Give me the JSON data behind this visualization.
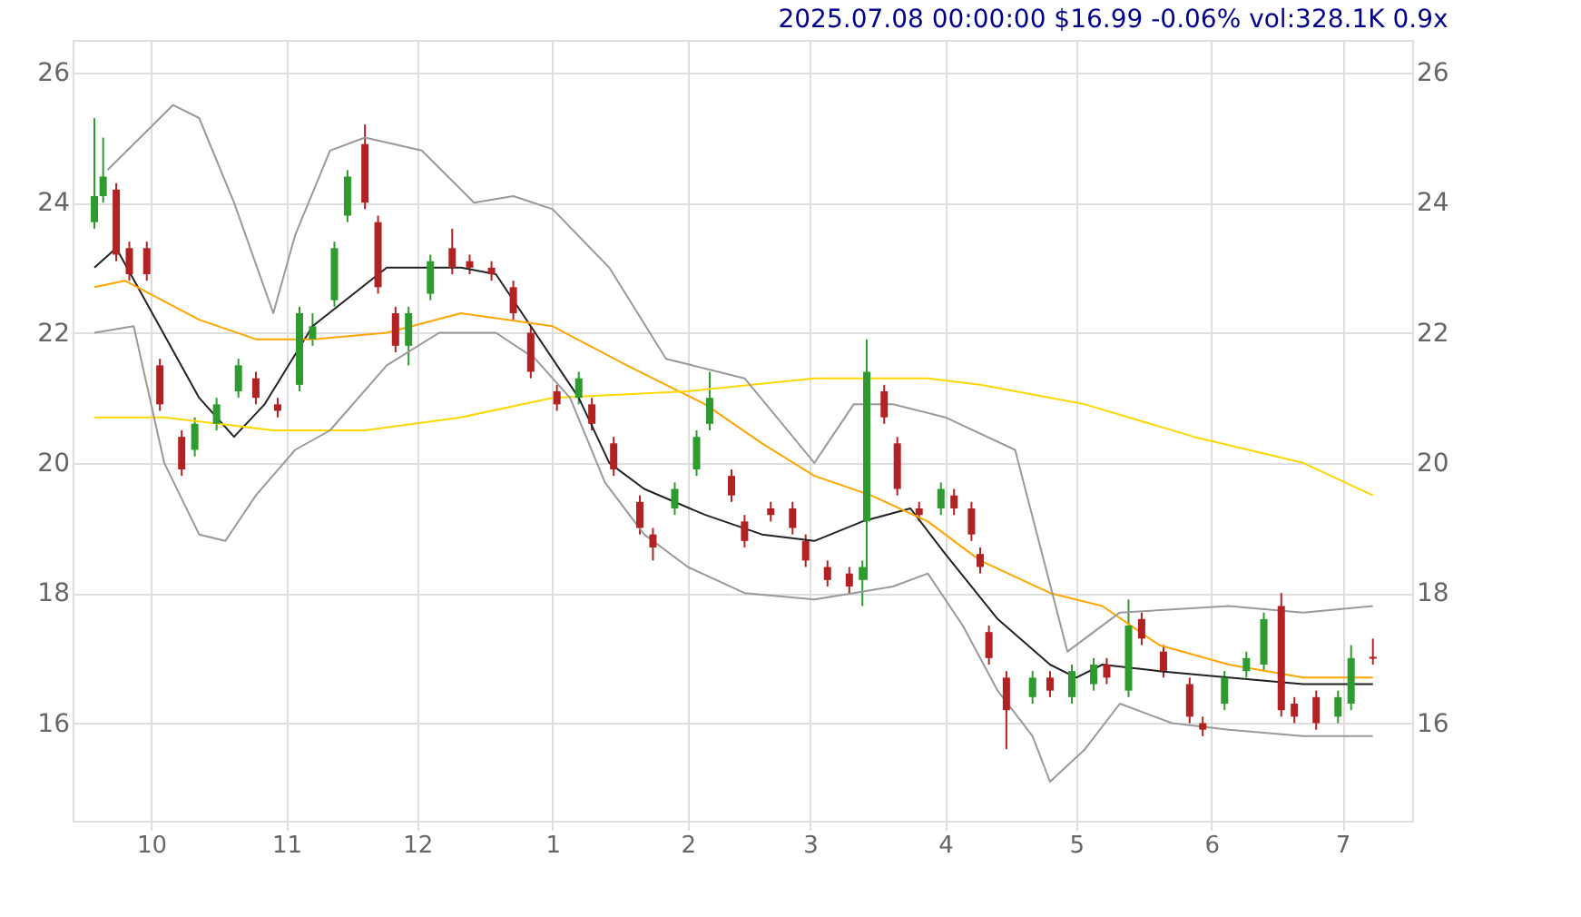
{
  "chart_data": {
    "type": "candlestick",
    "title": "2025.07.08 00:00:00 $16.99 -0.06% vol:328.1K 0.9x",
    "x": [
      "2024-09-18",
      "2024-09-20",
      "2024-09-23",
      "2024-09-26",
      "2024-09-30",
      "2024-10-03",
      "2024-10-08",
      "2024-10-11",
      "2024-10-16",
      "2024-10-21",
      "2024-10-25",
      "2024-10-30",
      "2024-11-04",
      "2024-11-07",
      "2024-11-12",
      "2024-11-15",
      "2024-11-19",
      "2024-11-22",
      "2024-11-26",
      "2024-11-29",
      "2024-12-04",
      "2024-12-09",
      "2024-12-13",
      "2024-12-18",
      "2024-12-23",
      "2024-12-27",
      "2025-01-02",
      "2025-01-07",
      "2025-01-10",
      "2025-01-15",
      "2025-01-21",
      "2025-01-24",
      "2025-01-29",
      "2025-02-03",
      "2025-02-06",
      "2025-02-11",
      "2025-02-14",
      "2025-02-20",
      "2025-02-25",
      "2025-02-28",
      "2025-03-05",
      "2025-03-10",
      "2025-03-13",
      "2025-03-14",
      "2025-03-18",
      "2025-03-21",
      "2025-03-26",
      "2025-03-31",
      "2025-04-03",
      "2025-04-07",
      "2025-04-09",
      "2025-04-11",
      "2025-04-15",
      "2025-04-21",
      "2025-04-25",
      "2025-04-30",
      "2025-05-05",
      "2025-05-08",
      "2025-05-13",
      "2025-05-16",
      "2025-05-21",
      "2025-05-27",
      "2025-05-30",
      "2025-06-04",
      "2025-06-09",
      "2025-06-13",
      "2025-06-17",
      "2025-06-20",
      "2025-06-25",
      "2025-06-30",
      "2025-07-03",
      "2025-07-08"
    ],
    "ohlc": [
      [
        23.7,
        25.3,
        23.6,
        24.1
      ],
      [
        24.1,
        25.0,
        24.0,
        24.4
      ],
      [
        24.2,
        24.3,
        23.1,
        23.2
      ],
      [
        23.3,
        23.4,
        22.8,
        22.9
      ],
      [
        23.3,
        23.4,
        22.8,
        22.9
      ],
      [
        21.5,
        21.6,
        20.8,
        20.9
      ],
      [
        20.4,
        20.5,
        19.8,
        19.9
      ],
      [
        20.2,
        20.7,
        20.1,
        20.6
      ],
      [
        20.6,
        21.0,
        20.5,
        20.9
      ],
      [
        21.1,
        21.6,
        21.0,
        21.5
      ],
      [
        21.3,
        21.4,
        20.9,
        21.0
      ],
      [
        20.9,
        21.0,
        20.7,
        20.8
      ],
      [
        21.2,
        22.4,
        21.1,
        22.3
      ],
      [
        21.9,
        22.3,
        21.8,
        22.1
      ],
      [
        22.5,
        23.4,
        22.4,
        23.3
      ],
      [
        23.8,
        24.5,
        23.7,
        24.4
      ],
      [
        24.9,
        25.2,
        23.9,
        24.0
      ],
      [
        23.7,
        23.8,
        22.6,
        22.7
      ],
      [
        22.3,
        22.4,
        21.7,
        21.8
      ],
      [
        21.8,
        22.4,
        21.5,
        22.3
      ],
      [
        22.6,
        23.2,
        22.5,
        23.1
      ],
      [
        23.3,
        23.6,
        22.9,
        23.0
      ],
      [
        23.1,
        23.2,
        22.9,
        23.0
      ],
      [
        23.0,
        23.1,
        22.8,
        22.9
      ],
      [
        22.7,
        22.8,
        22.2,
        22.3
      ],
      [
        22.0,
        22.1,
        21.3,
        21.4
      ],
      [
        21.1,
        21.2,
        20.8,
        20.9
      ],
      [
        21.0,
        21.4,
        20.9,
        21.3
      ],
      [
        20.9,
        21.0,
        20.5,
        20.6
      ],
      [
        20.3,
        20.4,
        19.8,
        19.9
      ],
      [
        19.4,
        19.5,
        18.9,
        19.0
      ],
      [
        18.9,
        19.0,
        18.5,
        18.7
      ],
      [
        19.3,
        19.7,
        19.2,
        19.6
      ],
      [
        19.9,
        20.5,
        19.8,
        20.4
      ],
      [
        20.6,
        21.4,
        20.5,
        21.0
      ],
      [
        19.8,
        19.9,
        19.4,
        19.5
      ],
      [
        19.1,
        19.2,
        18.7,
        18.8
      ],
      [
        19.3,
        19.4,
        19.1,
        19.2
      ],
      [
        19.3,
        19.4,
        18.9,
        19.0
      ],
      [
        18.8,
        18.9,
        18.4,
        18.5
      ],
      [
        18.4,
        18.5,
        18.1,
        18.2
      ],
      [
        18.3,
        18.4,
        18.0,
        18.1
      ],
      [
        18.2,
        18.5,
        17.8,
        18.4
      ],
      [
        19.1,
        21.9,
        18.2,
        21.4
      ],
      [
        21.1,
        21.2,
        20.6,
        20.7
      ],
      [
        20.3,
        20.4,
        19.5,
        19.6
      ],
      [
        19.3,
        19.4,
        19.1,
        19.2
      ],
      [
        19.3,
        19.7,
        19.2,
        19.6
      ],
      [
        19.5,
        19.6,
        19.2,
        19.3
      ],
      [
        19.3,
        19.4,
        18.8,
        18.9
      ],
      [
        18.6,
        18.7,
        18.3,
        18.4
      ],
      [
        17.4,
        17.5,
        16.9,
        17.0
      ],
      [
        16.7,
        16.8,
        15.6,
        16.2
      ],
      [
        16.4,
        16.8,
        16.3,
        16.7
      ],
      [
        16.7,
        16.8,
        16.4,
        16.5
      ],
      [
        16.4,
        16.9,
        16.3,
        16.8
      ],
      [
        16.6,
        17.0,
        16.5,
        16.9
      ],
      [
        16.9,
        17.0,
        16.6,
        16.7
      ],
      [
        16.5,
        17.9,
        16.4,
        17.5
      ],
      [
        17.6,
        17.7,
        17.2,
        17.3
      ],
      [
        17.1,
        17.2,
        16.7,
        16.8
      ],
      [
        16.6,
        16.7,
        16.0,
        16.1
      ],
      [
        16.0,
        16.1,
        15.8,
        15.9
      ],
      [
        16.3,
        16.8,
        16.2,
        16.7
      ],
      [
        16.8,
        17.1,
        16.7,
        17.0
      ],
      [
        16.9,
        17.7,
        16.8,
        17.6
      ],
      [
        17.8,
        18.0,
        16.1,
        16.2
      ],
      [
        16.3,
        16.4,
        16.0,
        16.1
      ],
      [
        16.4,
        16.5,
        15.9,
        16.0
      ],
      [
        16.1,
        16.5,
        16.0,
        16.4
      ],
      [
        16.3,
        17.2,
        16.2,
        17.0
      ],
      [
        17.02,
        17.3,
        16.9,
        16.99
      ]
    ],
    "colors": [
      "#2e9b2e",
      "#2e9b2e",
      "#b22222",
      "#b22222",
      "#b22222",
      "#b22222",
      "#b22222",
      "#2e9b2e",
      "#2e9b2e",
      "#2e9b2e",
      "#b22222",
      "#b22222",
      "#2e9b2e",
      "#2e9b2e",
      "#2e9b2e",
      "#2e9b2e",
      "#b22222",
      "#b22222",
      "#b22222",
      "#2e9b2e",
      "#2e9b2e",
      "#b22222",
      "#b22222",
      "#b22222",
      "#b22222",
      "#b22222",
      "#b22222",
      "#2e9b2e",
      "#b22222",
      "#b22222",
      "#b22222",
      "#b22222",
      "#2e9b2e",
      "#2e9b2e",
      "#2e9b2e",
      "#b22222",
      "#b22222",
      "#b22222",
      "#b22222",
      "#b22222",
      "#b22222",
      "#b22222",
      "#2e9b2e",
      "#2e9b2e",
      "#b22222",
      "#b22222",
      "#b22222",
      "#2e9b2e",
      "#b22222",
      "#b22222",
      "#b22222",
      "#b22222",
      "#b22222",
      "#2e9b2e",
      "#b22222",
      "#2e9b2e",
      "#2e9b2e",
      "#b22222",
      "#2e9b2e",
      "#b22222",
      "#b22222",
      "#b22222",
      "#b22222",
      "#2e9b2e",
      "#2e9b2e",
      "#2e9b2e",
      "#b22222",
      "#b22222",
      "#b22222",
      "#2e9b2e",
      "#2e9b2e",
      "#b22222"
    ],
    "series": [
      {
        "type": "line",
        "color": "#222222",
        "x": [
          "2024-09-18",
          "2024-09-23",
          "2024-10-12",
          "2024-10-20",
          "2024-10-27",
          "2024-11-07",
          "2024-11-24",
          "2024-12-11",
          "2024-12-19",
          "2024-12-28",
          "2025-01-07",
          "2025-01-14",
          "2025-01-22",
          "2025-02-05",
          "2025-02-18",
          "2025-03-02",
          "2025-03-13",
          "2025-03-24",
          "2025-04-01",
          "2025-04-13",
          "2025-04-25",
          "2025-05-01",
          "2025-05-07",
          "2025-05-20",
          "2025-06-05",
          "2025-06-22",
          "2025-07-08"
        ],
        "values": [
          23.0,
          23.3,
          21.0,
          20.4,
          20.9,
          22.1,
          23.0,
          23.0,
          22.9,
          22.0,
          21.0,
          20.0,
          19.6,
          19.2,
          18.9,
          18.8,
          19.1,
          19.3,
          18.6,
          17.6,
          16.9,
          16.7,
          16.9,
          16.8,
          16.7,
          16.6,
          16.6
        ]
      },
      {
        "type": "line",
        "color": "#ffa500",
        "x": [
          "2024-09-18",
          "2024-09-25",
          "2024-10-12",
          "2024-10-25",
          "2024-11-07",
          "2024-11-24",
          "2024-12-11",
          "2025-01-01",
          "2025-01-18",
          "2025-02-05",
          "2025-02-18",
          "2025-03-02",
          "2025-03-15",
          "2025-03-28",
          "2025-04-09",
          "2025-04-25",
          "2025-05-07",
          "2025-05-20",
          "2025-06-05",
          "2025-06-22",
          "2025-07-08"
        ],
        "values": [
          22.7,
          22.8,
          22.2,
          21.9,
          21.9,
          22.0,
          22.3,
          22.1,
          21.5,
          20.9,
          20.3,
          19.8,
          19.5,
          19.1,
          18.5,
          18.0,
          17.8,
          17.2,
          16.9,
          16.7,
          16.7
        ]
      },
      {
        "type": "line",
        "color": "#ffd700",
        "x": [
          "2024-09-18",
          "2024-10-04",
          "2024-10-29",
          "2024-11-19",
          "2024-12-11",
          "2025-01-01",
          "2025-02-01",
          "2025-03-02",
          "2025-03-28",
          "2025-04-09",
          "2025-05-03",
          "2025-05-28",
          "2025-06-22",
          "2025-07-08"
        ],
        "values": [
          20.7,
          20.7,
          20.5,
          20.5,
          20.7,
          21.0,
          21.1,
          21.3,
          21.3,
          21.2,
          20.9,
          20.4,
          20.0,
          19.5
        ]
      },
      {
        "type": "line",
        "color": "#999999",
        "x": [
          "2024-09-21",
          "2024-10-06",
          "2024-10-12",
          "2024-10-20",
          "2024-10-29",
          "2024-11-03",
          "2024-11-11",
          "2024-11-19",
          "2024-12-02",
          "2024-12-14",
          "2024-12-23",
          "2025-01-01",
          "2025-01-14",
          "2025-01-27",
          "2025-02-14",
          "2025-03-02",
          "2025-03-11",
          "2025-03-20",
          "2025-04-01",
          "2025-04-17",
          "2025-04-29",
          "2025-05-11",
          "2025-06-05",
          "2025-06-22",
          "2025-07-08"
        ],
        "values": [
          24.5,
          25.5,
          25.3,
          24.0,
          22.3,
          23.5,
          24.8,
          25.0,
          24.8,
          24.0,
          24.1,
          23.9,
          23.0,
          21.6,
          21.3,
          20.0,
          20.9,
          20.9,
          20.7,
          20.2,
          17.1,
          17.7,
          17.8,
          17.7,
          17.8
        ]
      },
      {
        "type": "line",
        "color": "#999999",
        "x": [
          "2024-09-18",
          "2024-09-27",
          "2024-10-04",
          "2024-10-12",
          "2024-10-18",
          "2024-10-25",
          "2024-11-03",
          "2024-11-11",
          "2024-11-24",
          "2024-12-06",
          "2024-12-19",
          "2024-12-28",
          "2025-01-05",
          "2025-01-13",
          "2025-01-22",
          "2025-02-01",
          "2025-02-14",
          "2025-03-02",
          "2025-03-11",
          "2025-03-20",
          "2025-03-28",
          "2025-04-05",
          "2025-04-13",
          "2025-04-21",
          "2025-04-25",
          "2025-05-03",
          "2025-05-11",
          "2025-05-23",
          "2025-06-05",
          "2025-06-22",
          "2025-07-08"
        ],
        "values": [
          22.0,
          22.1,
          20.0,
          18.9,
          18.8,
          19.5,
          20.2,
          20.5,
          21.5,
          22.0,
          22.0,
          21.6,
          21.0,
          19.7,
          18.9,
          18.4,
          18.0,
          17.9,
          18.0,
          18.1,
          18.3,
          17.5,
          16.5,
          15.8,
          15.1,
          15.6,
          16.3,
          16.0,
          15.9,
          15.8,
          15.8
        ]
      }
    ],
    "xlim": [
      "2024-09-13",
      "2025-07-17"
    ],
    "xticks": [
      {
        "value": "2024-10-01",
        "label": "10"
      },
      {
        "value": "2024-11-01",
        "label": "11"
      },
      {
        "value": "2024-12-01",
        "label": "12"
      },
      {
        "value": "2025-01-01",
        "label": "1"
      },
      {
        "value": "2025-02-01",
        "label": "2"
      },
      {
        "value": "2025-03-01",
        "label": "3"
      },
      {
        "value": "2025-04-01",
        "label": "4"
      },
      {
        "value": "2025-05-01",
        "label": "5"
      },
      {
        "value": "2025-06-01",
        "label": "6"
      },
      {
        "value": "2025-07-01",
        "label": "7"
      }
    ],
    "ylim": [
      14.5,
      26.5
    ],
    "yticks": [
      16,
      18,
      20,
      22,
      24,
      26
    ],
    "y2lim": [
      14.5,
      26.5
    ],
    "y2ticks": [
      16,
      18,
      20,
      22,
      24,
      26
    ],
    "grid": true
  }
}
